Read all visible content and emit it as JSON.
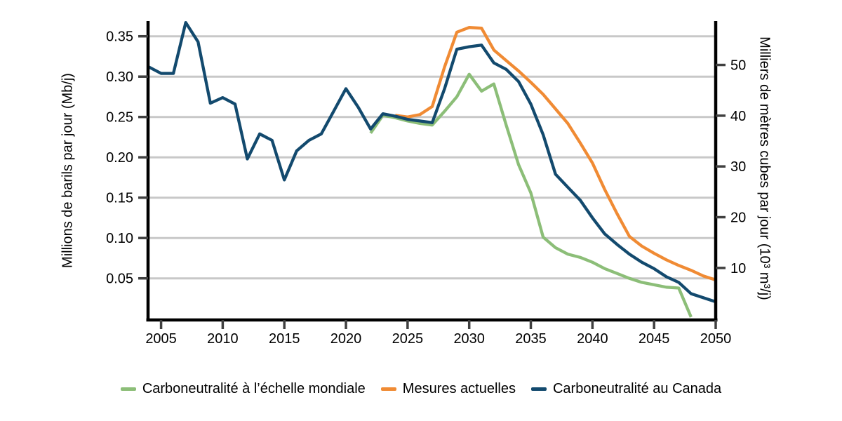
{
  "chart_data": {
    "type": "line",
    "title": "",
    "legend_position": "bottom",
    "grid": {
      "show": true,
      "color": "#c8c8c8"
    },
    "axis_color": "#000000",
    "tick_color": "#404040",
    "text_color": "#000000",
    "x_axis": {
      "range": [
        2004,
        2050
      ],
      "ticks": [
        2005,
        2010,
        2015,
        2020,
        2025,
        2030,
        2035,
        2040,
        2045,
        2050
      ]
    },
    "left_axis": {
      "label": "Millions de barils par jour (Mb/j)",
      "ticks": [
        0.05,
        0.1,
        0.15,
        0.2,
        0.25,
        0.3,
        0.35
      ],
      "range": [
        0,
        0.37
      ]
    },
    "right_axis": {
      "label": "Milliers de mètres cubes par jour (10³ m³/j)",
      "ticks": [
        10,
        20,
        30,
        40,
        50
      ],
      "units_per_left_unit": 158.987
    },
    "years": [
      2004,
      2005,
      2006,
      2007,
      2008,
      2009,
      2010,
      2011,
      2012,
      2013,
      2014,
      2015,
      2016,
      2017,
      2018,
      2019,
      2020,
      2021,
      2022,
      2023,
      2024,
      2025,
      2026,
      2027,
      2028,
      2029,
      2030,
      2031,
      2032,
      2033,
      2034,
      2035,
      2036,
      2037,
      2038,
      2039,
      2040,
      2041,
      2042,
      2043,
      2044,
      2045,
      2046,
      2047,
      2048,
      2049,
      2050
    ],
    "series": [
      {
        "name": "Carboneutralité à l’échelle mondiale",
        "color": "#8cbe78",
        "values": [
          null,
          null,
          null,
          null,
          null,
          null,
          null,
          null,
          null,
          null,
          null,
          null,
          null,
          null,
          null,
          null,
          null,
          null,
          0.23,
          0.252,
          0.249,
          0.245,
          0.242,
          0.24,
          0.257,
          0.275,
          0.303,
          0.282,
          0.291,
          0.24,
          0.191,
          0.156,
          0.101,
          0.088,
          0.08,
          0.076,
          0.07,
          0.062,
          0.056,
          0.05,
          0.045,
          0.042,
          0.039,
          0.038,
          0.002,
          null,
          null
        ]
      },
      {
        "name": "Mesures actuelles",
        "color": "#f08b34",
        "values": [
          null,
          null,
          null,
          null,
          null,
          null,
          null,
          null,
          null,
          null,
          null,
          null,
          null,
          null,
          null,
          null,
          null,
          null,
          null,
          null,
          0.252,
          0.25,
          0.253,
          0.263,
          0.312,
          0.355,
          0.361,
          0.36,
          0.333,
          0.32,
          0.307,
          0.293,
          0.278,
          0.26,
          0.242,
          0.218,
          0.193,
          0.16,
          0.13,
          0.102,
          0.09,
          0.081,
          0.073,
          0.066,
          0.06,
          0.053,
          0.048
        ]
      },
      {
        "name": "Carboneutralité au Canada",
        "color": "#134a6e",
        "values": [
          0.312,
          0.304,
          0.304,
          0.367,
          0.343,
          0.267,
          0.274,
          0.266,
          0.198,
          0.229,
          0.221,
          0.172,
          0.208,
          0.221,
          0.229,
          0.257,
          0.285,
          0.262,
          0.235,
          0.254,
          0.251,
          0.247,
          0.245,
          0.243,
          0.285,
          0.334,
          0.337,
          0.339,
          0.317,
          0.309,
          0.294,
          0.266,
          0.228,
          0.179,
          0.163,
          0.147,
          0.125,
          0.105,
          0.092,
          0.08,
          0.07,
          0.062,
          0.052,
          0.045,
          0.031,
          0.026,
          0.021
        ]
      }
    ]
  }
}
